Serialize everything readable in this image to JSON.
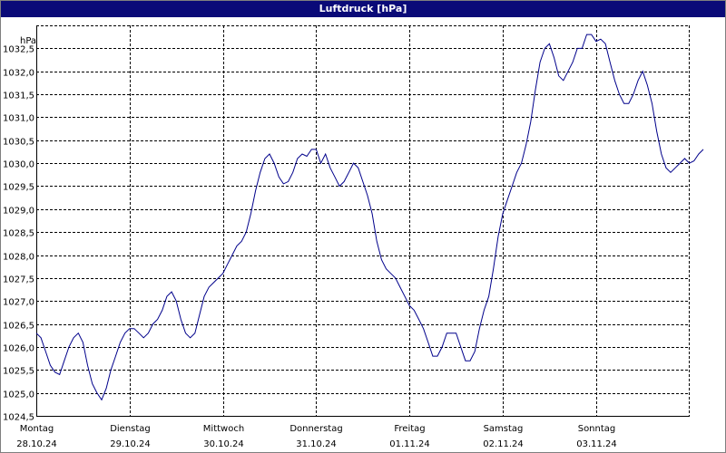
{
  "chart_data": {
    "type": "line",
    "title": "Luftdruck [hPa]",
    "ylabel": "hPa",
    "xlabel": "",
    "ylim": [
      1024.5,
      1033.0
    ],
    "y_ticks": [
      "1024,5",
      "1025,0",
      "1025,5",
      "1026,0",
      "1026,5",
      "1027,0",
      "1027,5",
      "1028,0",
      "1028,5",
      "1029,0",
      "1029,5",
      "1030,0",
      "1030,5",
      "1031,0",
      "1031,5",
      "1032,0",
      "1032,5"
    ],
    "y_tick_values": [
      1024.5,
      1025.0,
      1025.5,
      1026.0,
      1026.5,
      1027.0,
      1027.5,
      1028.0,
      1028.5,
      1029.0,
      1029.5,
      1030.0,
      1030.5,
      1031.0,
      1031.5,
      1032.0,
      1032.5
    ],
    "x_range": [
      0,
      7.24
    ],
    "x_ticks": [
      {
        "day": "Montag",
        "date": "28.10.24",
        "pos": 0
      },
      {
        "day": "Dienstag",
        "date": "29.10.24",
        "pos": 1
      },
      {
        "day": "Mittwoch",
        "date": "30.10.24",
        "pos": 2
      },
      {
        "day": "Donnerstag",
        "date": "31.10.24",
        "pos": 3
      },
      {
        "day": "Freitag",
        "date": "01.11.24",
        "pos": 4
      },
      {
        "day": "Samstag",
        "date": "02.11.24",
        "pos": 5
      },
      {
        "day": "Sonntag",
        "date": "03.11.24",
        "pos": 6
      }
    ],
    "grid": true,
    "colors": {
      "line": "#00008b",
      "grid": "#000000",
      "titlebar": "#0a0a78"
    },
    "series": [
      {
        "points": [
          [
            0.0,
            1026.3
          ],
          [
            0.05,
            1026.2
          ],
          [
            0.1,
            1025.9
          ],
          [
            0.15,
            1025.6
          ],
          [
            0.2,
            1025.45
          ],
          [
            0.25,
            1025.4
          ],
          [
            0.3,
            1025.7
          ],
          [
            0.35,
            1026.0
          ],
          [
            0.4,
            1026.2
          ],
          [
            0.45,
            1026.3
          ],
          [
            0.5,
            1026.1
          ],
          [
            0.55,
            1025.6
          ],
          [
            0.6,
            1025.2
          ],
          [
            0.65,
            1025.0
          ],
          [
            0.7,
            1024.85
          ],
          [
            0.75,
            1025.1
          ],
          [
            0.8,
            1025.5
          ],
          [
            0.85,
            1025.8
          ],
          [
            0.9,
            1026.1
          ],
          [
            0.95,
            1026.3
          ],
          [
            1.0,
            1026.4
          ],
          [
            1.05,
            1026.4
          ],
          [
            1.1,
            1026.3
          ],
          [
            1.15,
            1026.2
          ],
          [
            1.2,
            1026.3
          ],
          [
            1.25,
            1026.5
          ],
          [
            1.3,
            1026.6
          ],
          [
            1.35,
            1026.8
          ],
          [
            1.4,
            1027.1
          ],
          [
            1.45,
            1027.2
          ],
          [
            1.5,
            1027.0
          ],
          [
            1.55,
            1026.6
          ],
          [
            1.6,
            1026.3
          ],
          [
            1.65,
            1026.2
          ],
          [
            1.7,
            1026.3
          ],
          [
            1.75,
            1026.7
          ],
          [
            1.8,
            1027.1
          ],
          [
            1.85,
            1027.3
          ],
          [
            1.9,
            1027.4
          ],
          [
            1.95,
            1027.5
          ],
          [
            2.0,
            1027.6
          ],
          [
            2.05,
            1027.8
          ],
          [
            2.1,
            1028.0
          ],
          [
            2.15,
            1028.2
          ],
          [
            2.2,
            1028.3
          ],
          [
            2.25,
            1028.5
          ],
          [
            2.3,
            1028.9
          ],
          [
            2.35,
            1029.4
          ],
          [
            2.4,
            1029.8
          ],
          [
            2.45,
            1030.1
          ],
          [
            2.5,
            1030.2
          ],
          [
            2.55,
            1030.0
          ],
          [
            2.6,
            1029.7
          ],
          [
            2.65,
            1029.55
          ],
          [
            2.7,
            1029.6
          ],
          [
            2.75,
            1029.8
          ],
          [
            2.8,
            1030.1
          ],
          [
            2.85,
            1030.2
          ],
          [
            2.9,
            1030.15
          ],
          [
            2.95,
            1030.3
          ],
          [
            3.0,
            1030.3
          ],
          [
            3.05,
            1030.0
          ],
          [
            3.1,
            1030.2
          ],
          [
            3.15,
            1029.9
          ],
          [
            3.2,
            1029.7
          ],
          [
            3.25,
            1029.5
          ],
          [
            3.3,
            1029.6
          ],
          [
            3.35,
            1029.8
          ],
          [
            3.4,
            1030.0
          ],
          [
            3.45,
            1029.9
          ],
          [
            3.5,
            1029.6
          ],
          [
            3.55,
            1029.3
          ],
          [
            3.6,
            1028.9
          ],
          [
            3.65,
            1028.3
          ],
          [
            3.7,
            1027.9
          ],
          [
            3.75,
            1027.7
          ],
          [
            3.8,
            1027.6
          ],
          [
            3.85,
            1027.5
          ],
          [
            3.9,
            1027.3
          ],
          [
            3.95,
            1027.1
          ],
          [
            4.0,
            1026.9
          ],
          [
            4.05,
            1026.8
          ],
          [
            4.1,
            1026.6
          ],
          [
            4.15,
            1026.4
          ],
          [
            4.2,
            1026.1
          ],
          [
            4.25,
            1025.8
          ],
          [
            4.3,
            1025.8
          ],
          [
            4.35,
            1026.0
          ],
          [
            4.4,
            1026.3
          ],
          [
            4.45,
            1026.3
          ],
          [
            4.5,
            1026.3
          ],
          [
            4.55,
            1026.0
          ],
          [
            4.6,
            1025.7
          ],
          [
            4.65,
            1025.7
          ],
          [
            4.7,
            1025.9
          ],
          [
            4.75,
            1026.4
          ],
          [
            4.8,
            1026.8
          ],
          [
            4.85,
            1027.1
          ],
          [
            4.9,
            1027.7
          ],
          [
            4.95,
            1028.4
          ],
          [
            5.0,
            1028.9
          ],
          [
            5.05,
            1029.2
          ],
          [
            5.1,
            1029.5
          ],
          [
            5.15,
            1029.8
          ],
          [
            5.2,
            1030.0
          ],
          [
            5.25,
            1030.4
          ],
          [
            5.3,
            1030.9
          ],
          [
            5.35,
            1031.6
          ],
          [
            5.4,
            1032.2
          ],
          [
            5.45,
            1032.5
          ],
          [
            5.5,
            1032.6
          ],
          [
            5.55,
            1032.3
          ],
          [
            5.6,
            1031.9
          ],
          [
            5.65,
            1031.8
          ],
          [
            5.7,
            1032.0
          ],
          [
            5.75,
            1032.2
          ],
          [
            5.8,
            1032.5
          ],
          [
            5.85,
            1032.5
          ],
          [
            5.9,
            1032.8
          ],
          [
            5.95,
            1032.8
          ],
          [
            6.0,
            1032.65
          ],
          [
            6.05,
            1032.7
          ],
          [
            6.1,
            1032.6
          ],
          [
            6.15,
            1032.2
          ],
          [
            6.2,
            1031.8
          ],
          [
            6.25,
            1031.5
          ],
          [
            6.3,
            1031.3
          ],
          [
            6.35,
            1031.3
          ],
          [
            6.4,
            1031.5
          ],
          [
            6.45,
            1031.8
          ],
          [
            6.5,
            1032.0
          ],
          [
            6.55,
            1031.7
          ],
          [
            6.6,
            1031.3
          ],
          [
            6.65,
            1030.7
          ],
          [
            6.7,
            1030.2
          ],
          [
            6.75,
            1029.9
          ],
          [
            6.8,
            1029.8
          ],
          [
            6.85,
            1029.9
          ],
          [
            6.9,
            1030.0
          ],
          [
            6.95,
            1030.1
          ],
          [
            7.0,
            1030.0
          ],
          [
            7.05,
            1030.05
          ],
          [
            7.1,
            1030.2
          ],
          [
            7.15,
            1030.3
          ]
        ]
      }
    ]
  }
}
